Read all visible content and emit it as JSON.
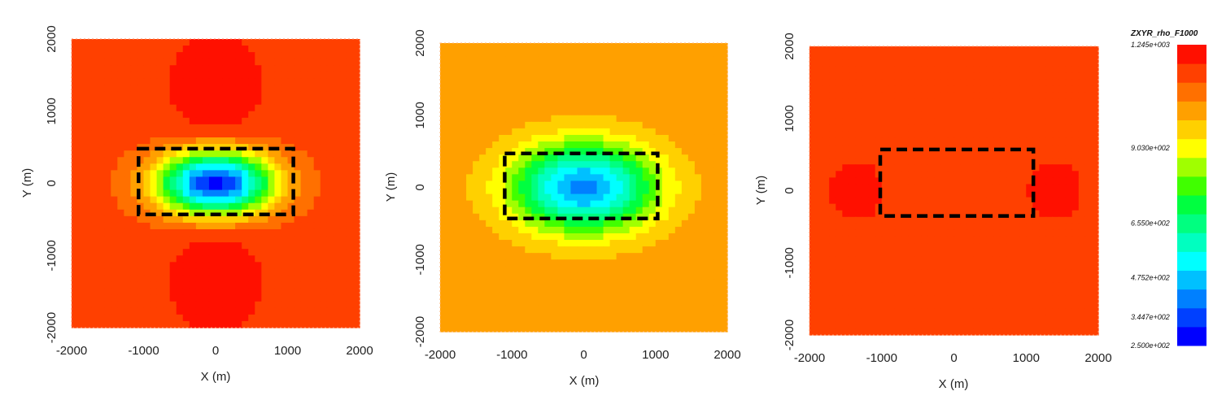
{
  "chart_data": [
    {
      "type": "heatmap",
      "panel": 1,
      "xlabel": "X (m)",
      "ylabel": "Y (m)",
      "xlim": [
        -2000,
        2000
      ],
      "ylim": [
        -2000,
        2000
      ],
      "x_ticks": [
        "-2000",
        "-1000",
        "0",
        "1000",
        "2000"
      ],
      "y_ticks": [
        "2000",
        "1000",
        "0",
        "-1000",
        "-2000"
      ],
      "field": {
        "background": 1150,
        "center_min": 290,
        "lobe_max": 1245
      },
      "dashed_box": {
        "x": [
          -1070,
          1080
        ],
        "y": [
          -430,
          480
        ]
      }
    },
    {
      "type": "heatmap",
      "panel": 2,
      "xlabel": "X (m)",
      "ylabel": "Y (m)",
      "xlim": [
        -2000,
        2000
      ],
      "ylim": [
        -2000,
        2000
      ],
      "x_ticks": [
        "-2000",
        "-1000",
        "0",
        "1000",
        "2000"
      ],
      "y_ticks": [
        "2000",
        "1000",
        "0",
        "-1000",
        "-2000"
      ],
      "field": {
        "background": 1040,
        "center_min": 410
      },
      "dashed_box": {
        "x": [
          -1100,
          1030
        ],
        "y": [
          -430,
          470
        ]
      }
    },
    {
      "type": "heatmap",
      "panel": 3,
      "xlabel": "X (m)",
      "ylabel": "Y (m)",
      "xlim": [
        -2000,
        2000
      ],
      "ylim": [
        -2000,
        2000
      ],
      "x_ticks": [
        "-2000",
        "-1000",
        "0",
        "1000",
        "2000"
      ],
      "y_ticks": [
        "2000",
        "1000",
        "0",
        "-1000",
        "-2000"
      ],
      "field": {
        "background": 1170,
        "side_lobe_max": 1200
      },
      "dashed_box": {
        "x": [
          -1020,
          1100
        ],
        "y": [
          -350,
          570
        ]
      }
    }
  ],
  "colorbar": {
    "title": "ZXYR_rho_F1000",
    "min": 250,
    "max": 1245,
    "labels": [
      "1.245e+003",
      "9.030e+002",
      "6.550e+002",
      "4.752e+002",
      "3.447e+002",
      "2.500e+002"
    ],
    "label_values": [
      1245,
      903,
      655,
      475.2,
      344.7,
      250
    ],
    "colors": [
      "#0000ff",
      "#0040ff",
      "#0080ff",
      "#00c0ff",
      "#00ffff",
      "#00ffc0",
      "#00ff80",
      "#00ff40",
      "#40ff00",
      "#a0ff00",
      "#ffff00",
      "#ffd000",
      "#ffa000",
      "#ff7000",
      "#ff4000",
      "#ff1000"
    ]
  }
}
